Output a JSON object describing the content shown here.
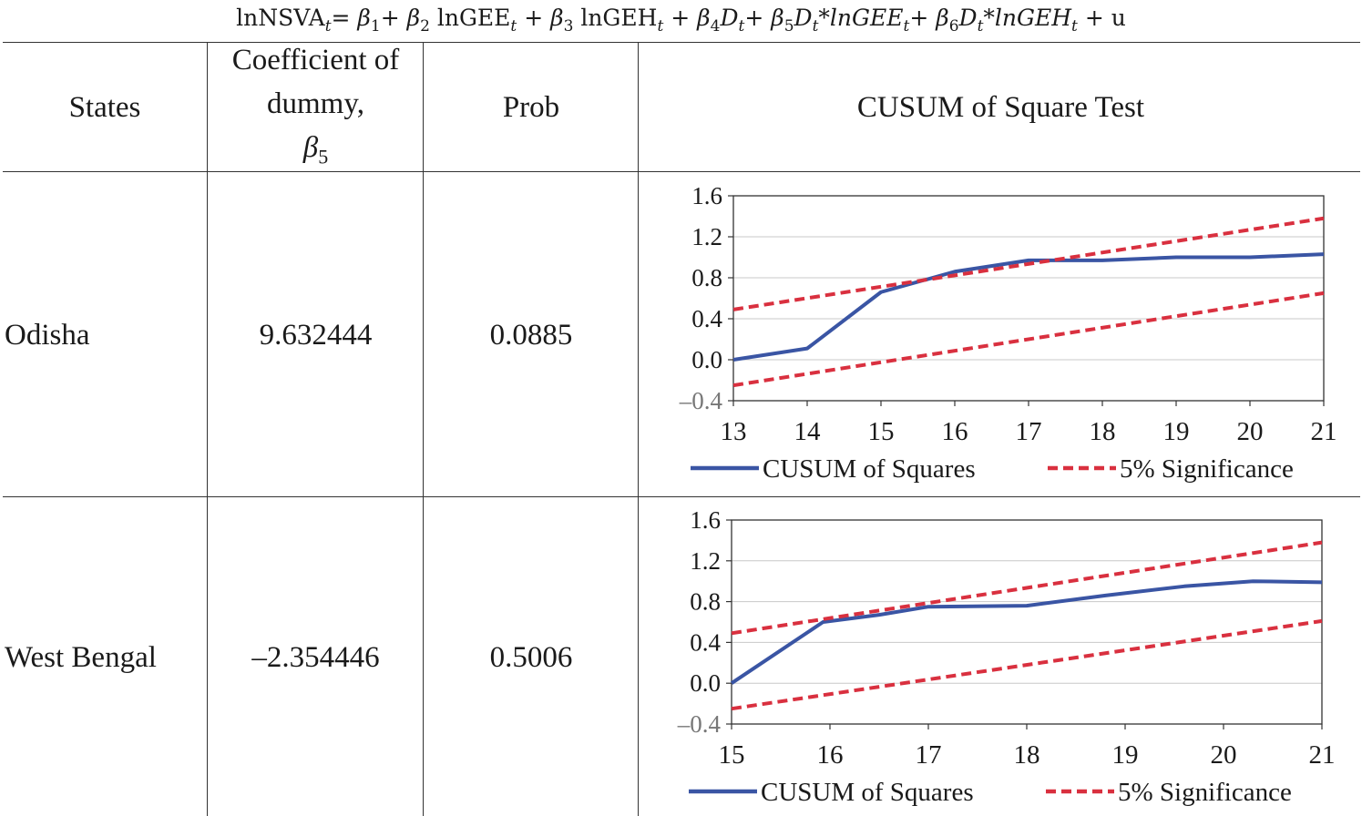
{
  "equation": {
    "lhs": "lnNSVA",
    "sub_t": "t",
    "terms": [
      "= β",
      "1",
      "+ β",
      "2",
      " lnGEE",
      "t",
      " + β",
      "3",
      " lnGEH",
      "t",
      " + β",
      "4",
      "D",
      "t",
      "+ β",
      "5",
      "D",
      "t",
      "*lnGEE",
      "t",
      "+ β",
      "6",
      "D",
      "t",
      "*lnGEH",
      "t",
      " + u"
    ]
  },
  "table": {
    "headers": {
      "states": "States",
      "coef_line1": "Coefficient of",
      "coef_line2": "dummy,",
      "coef_beta": "β",
      "coef_beta_sub": "5",
      "prob": "Prob",
      "test": "CUSUM of Square Test"
    },
    "rows": [
      {
        "state": "Odisha",
        "coefficient": "9.632444",
        "prob": "0.0885"
      },
      {
        "state": "West Bengal",
        "coefficient": "–2.354446",
        "prob": "0.5006"
      }
    ]
  },
  "chart_data": [
    {
      "type": "line",
      "title": "",
      "x": [
        13,
        14,
        15,
        16,
        17,
        18,
        19,
        20,
        21
      ],
      "xticks": [
        "13",
        "14",
        "15",
        "16",
        "17",
        "18",
        "19",
        "20",
        "21"
      ],
      "ylim": [
        -0.4,
        1.6
      ],
      "yticks": [
        "1.6",
        "1.2",
        "0.8",
        "0.4",
        "0.0",
        "–0.4"
      ],
      "grid": true,
      "legend_position": "bottom",
      "series": [
        {
          "name": "CUSUM of Squares",
          "color": "#3a55a4",
          "style": "solid",
          "points": [
            [
              13,
              0.0
            ],
            [
              14,
              0.11
            ],
            [
              15,
              0.66
            ],
            [
              16,
              0.86
            ],
            [
              17,
              0.97
            ],
            [
              18,
              0.97
            ],
            [
              19,
              1.0
            ],
            [
              20,
              1.0
            ],
            [
              21,
              1.03
            ]
          ]
        },
        {
          "name": "5% Significance",
          "color": "#d9303f",
          "style": "dashed",
          "points": [
            [
              13,
              0.49
            ],
            [
              21,
              1.38
            ]
          ]
        },
        {
          "name": "",
          "color": "#d9303f",
          "style": "dashed",
          "points": [
            [
              13,
              -0.25
            ],
            [
              21,
              0.65
            ]
          ]
        }
      ]
    },
    {
      "type": "line",
      "title": "",
      "x": [
        15,
        16,
        17,
        18,
        19,
        20,
        21
      ],
      "xticks": [
        "15",
        "16",
        "17",
        "18",
        "19",
        "20",
        "21"
      ],
      "ylim": [
        -0.4,
        1.6
      ],
      "yticks": [
        "1.6",
        "1.2",
        "0.8",
        "0.4",
        "0.0",
        "–0.4"
      ],
      "grid": true,
      "legend_position": "bottom",
      "series": [
        {
          "name": "CUSUM of Squares",
          "color": "#3a55a4",
          "style": "solid",
          "points": [
            [
              15,
              0.0
            ],
            [
              15.93,
              0.6
            ],
            [
              16.5,
              0.67
            ],
            [
              17,
              0.75
            ],
            [
              18,
              0.76
            ],
            [
              18.8,
              0.86
            ],
            [
              19.6,
              0.95
            ],
            [
              20.3,
              1.0
            ],
            [
              21,
              0.99
            ]
          ]
        },
        {
          "name": "5% Significance",
          "color": "#d9303f",
          "style": "dashed",
          "points": [
            [
              15,
              0.49
            ],
            [
              21,
              1.38
            ]
          ]
        },
        {
          "name": "",
          "color": "#d9303f",
          "style": "dashed",
          "points": [
            [
              15,
              -0.25
            ],
            [
              21,
              0.61
            ]
          ]
        }
      ]
    }
  ]
}
